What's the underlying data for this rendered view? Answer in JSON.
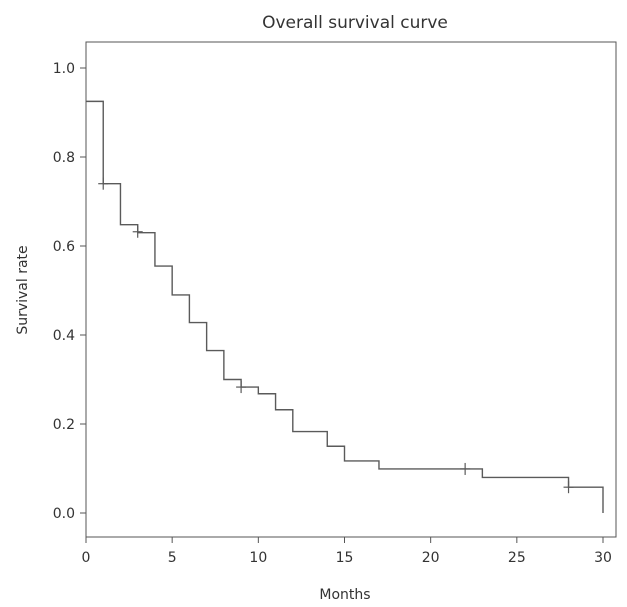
{
  "chart_data": {
    "type": "line",
    "subtype": "kaplan-meier-step",
    "title": "Overall survival curve",
    "xlabel": "Months",
    "ylabel": "Survival rate",
    "xlim": [
      0,
      30
    ],
    "ylim": [
      0.0,
      1.0
    ],
    "xticks": [
      "0",
      "5",
      "10",
      "15",
      "20",
      "25",
      "30"
    ],
    "yticks": [
      "0.0",
      "0.2",
      "0.4",
      "0.6",
      "0.8",
      "1.0"
    ],
    "grid": false,
    "line_color": "#5a5a5a",
    "series": [
      {
        "steps": [
          {
            "x": 0,
            "y": 0.925
          },
          {
            "x": 1,
            "y": 0.74
          },
          {
            "x": 2,
            "y": 0.648
          },
          {
            "x": 3,
            "y": 0.63
          },
          {
            "x": 4,
            "y": 0.555
          },
          {
            "x": 5,
            "y": 0.49
          },
          {
            "x": 6,
            "y": 0.428
          },
          {
            "x": 7,
            "y": 0.365
          },
          {
            "x": 8,
            "y": 0.3
          },
          {
            "x": 9,
            "y": 0.283
          },
          {
            "x": 10,
            "y": 0.268
          },
          {
            "x": 11,
            "y": 0.232
          },
          {
            "x": 12,
            "y": 0.183
          },
          {
            "x": 14,
            "y": 0.15
          },
          {
            "x": 15,
            "y": 0.117
          },
          {
            "x": 17,
            "y": 0.099
          },
          {
            "x": 23,
            "y": 0.08
          },
          {
            "x": 28,
            "y": 0.058
          },
          {
            "x": 30,
            "y": 0.0
          }
        ],
        "censored": [
          {
            "x": 1,
            "y": 0.74
          },
          {
            "x": 3,
            "y": 0.632
          },
          {
            "x": 9,
            "y": 0.283
          },
          {
            "x": 22,
            "y": 0.099
          },
          {
            "x": 28,
            "y": 0.058
          }
        ]
      }
    ]
  }
}
